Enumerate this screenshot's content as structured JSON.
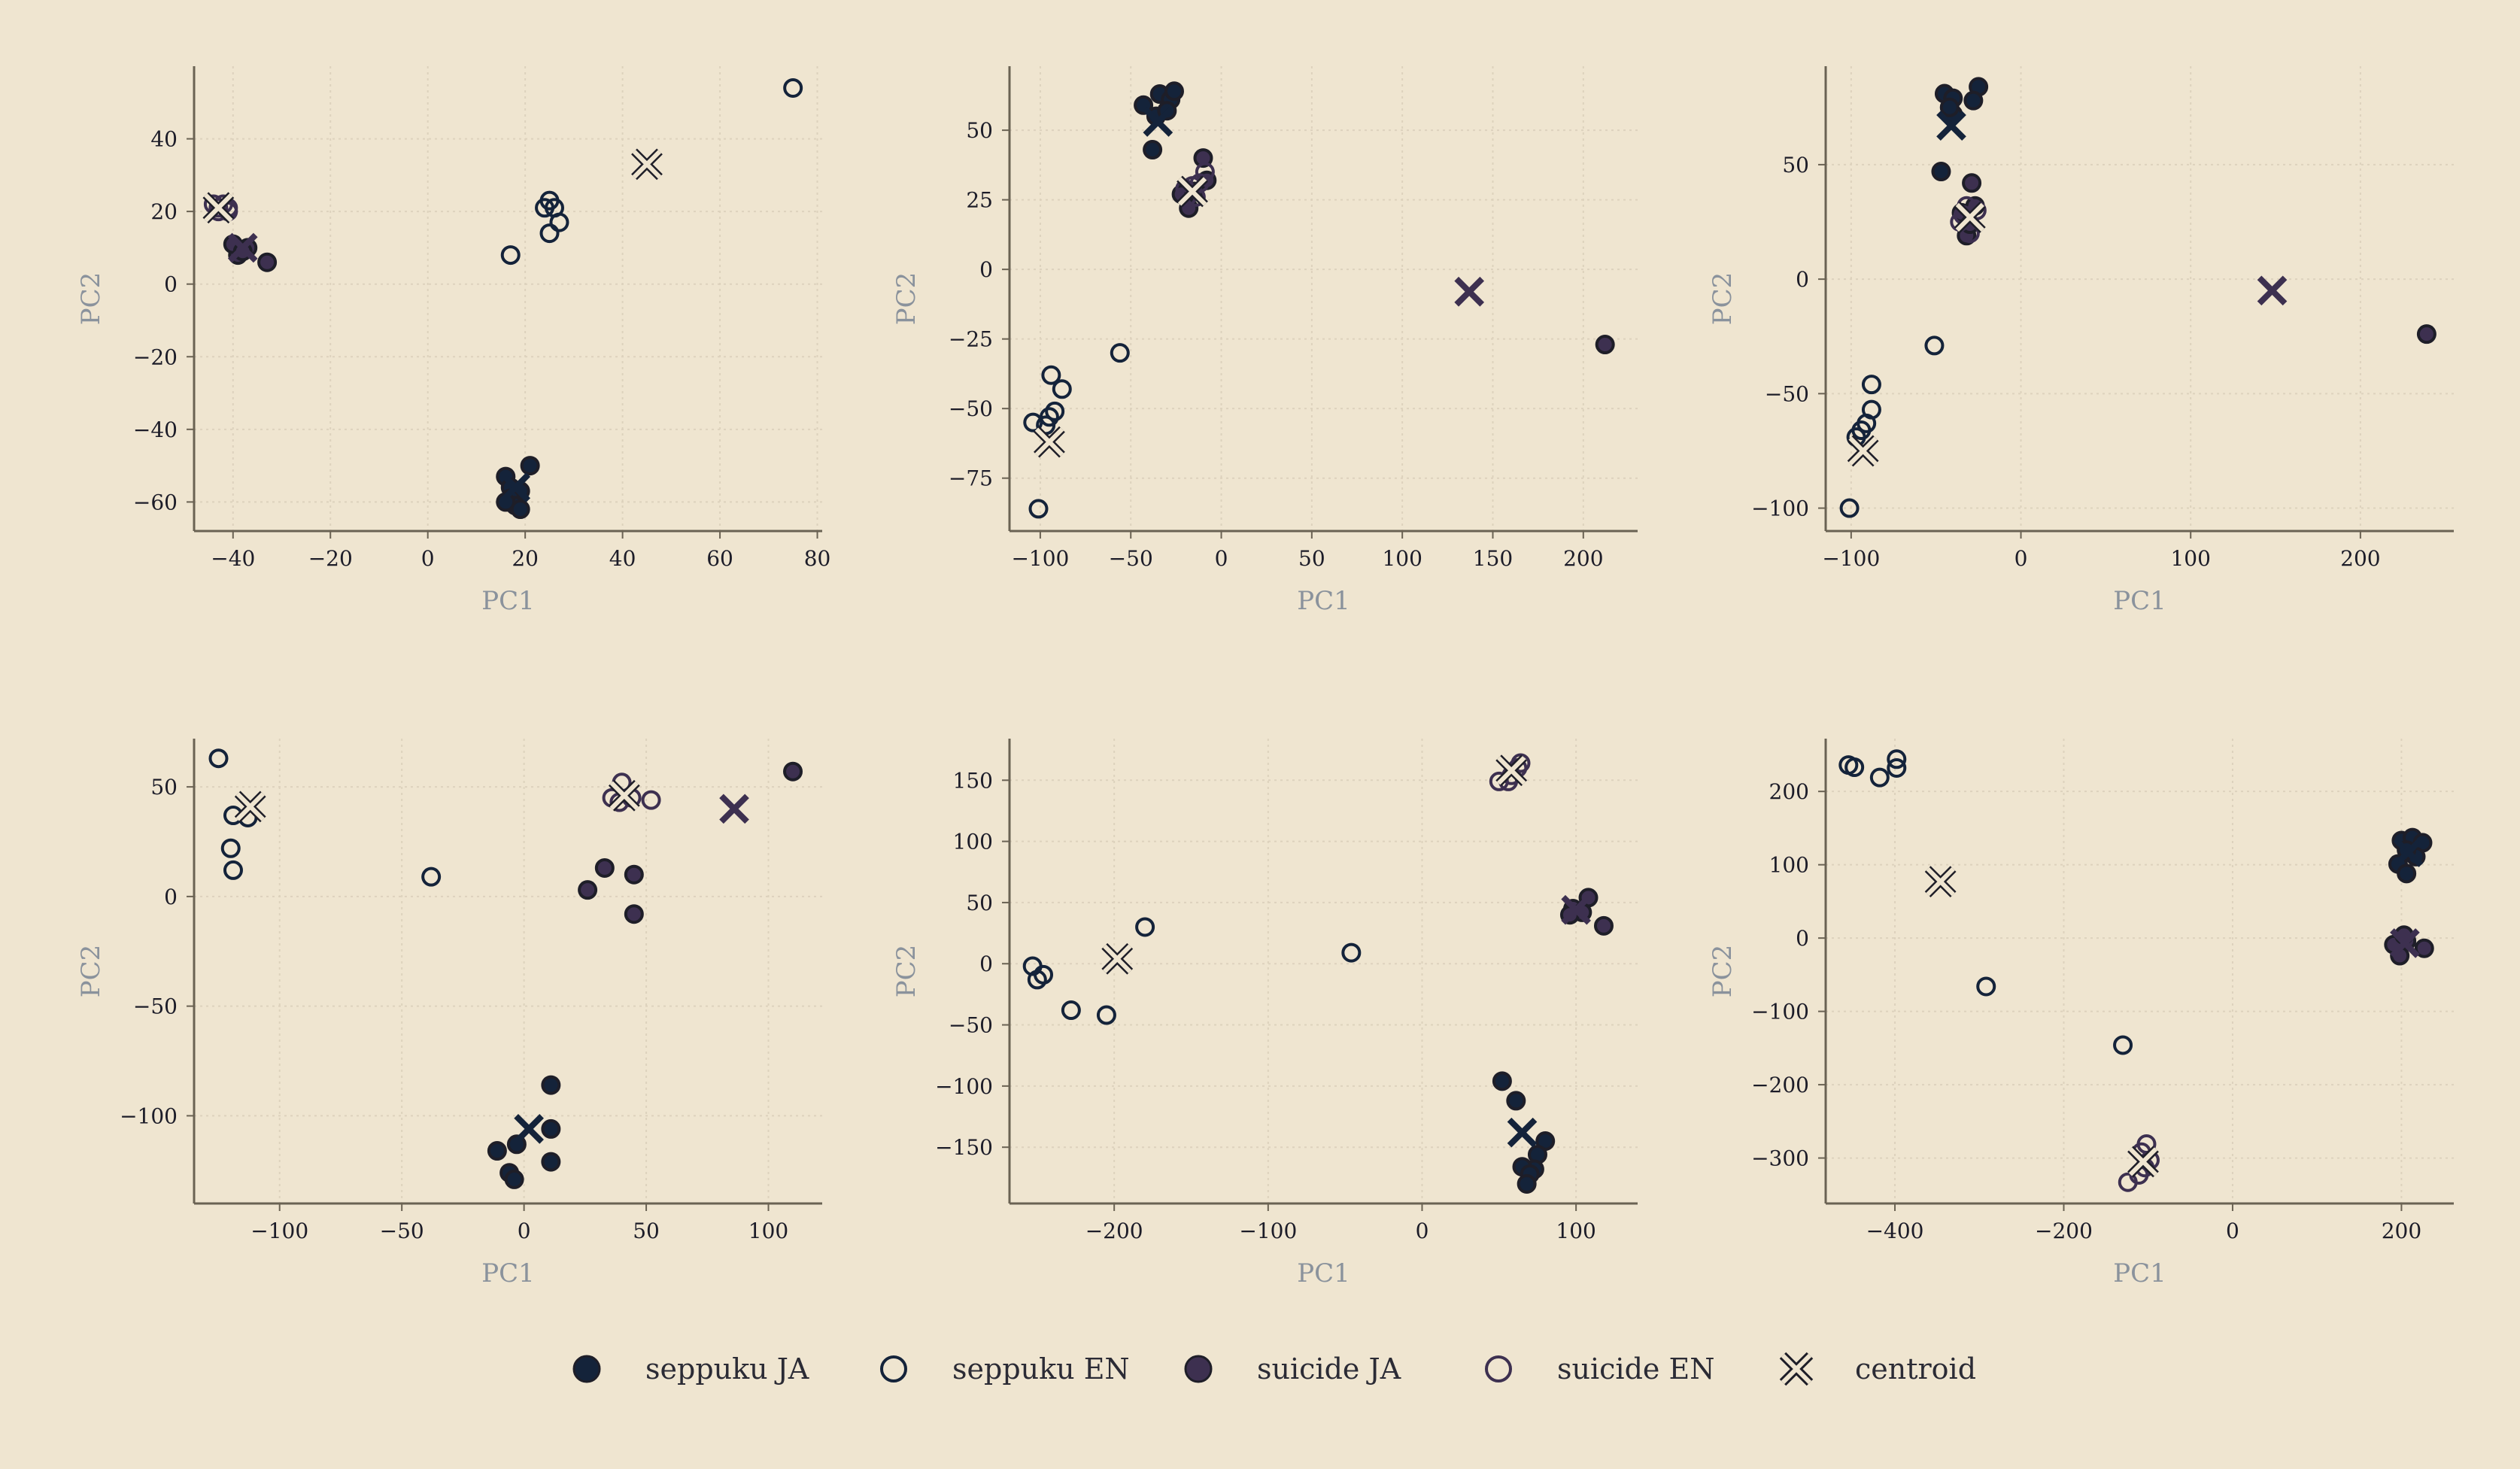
{
  "colors": {
    "background": "#efe5d0",
    "seppuku_ja": "#14233a",
    "suicide_ja": "#3d3050",
    "outline": "#1e1e28",
    "axis": "#6a6253",
    "grid": "#ddd2bd",
    "axis_title": "#8a929c"
  },
  "legend": [
    {
      "key": "seppuku_ja",
      "label": "seppuku JA",
      "marker": "filled-circle",
      "color": "#14233a"
    },
    {
      "key": "seppuku_en",
      "label": "seppuku EN",
      "marker": "hollow-circle",
      "color": "#14233a"
    },
    {
      "key": "suicide_ja",
      "label": "suicide JA",
      "marker": "filled-circle",
      "color": "#3d3050"
    },
    {
      "key": "suicide_en",
      "label": "suicide EN",
      "marker": "hollow-circle",
      "color": "#3d3050"
    },
    {
      "key": "centroid",
      "label": "centroid",
      "marker": "x",
      "color": "#14233a"
    }
  ],
  "chart_data": [
    {
      "type": "scatter",
      "xlabel": "PC1",
      "ylabel": "PC2",
      "xlim": [
        -48,
        81
      ],
      "ylim": [
        -68,
        60
      ],
      "xticks": [
        -40,
        -20,
        0,
        20,
        40,
        60,
        80
      ],
      "yticks": [
        -60,
        -40,
        -20,
        0,
        20,
        40
      ],
      "grid": true,
      "series": [
        {
          "key": "seppuku_ja",
          "points": [
            [
              21,
              -50
            ],
            [
              16,
              -53
            ],
            [
              17,
              -56
            ],
            [
              19,
              -57
            ],
            [
              17,
              -59
            ],
            [
              18,
              -61
            ],
            [
              16,
              -60
            ],
            [
              19,
              -62
            ]
          ]
        },
        {
          "key": "seppuku_en",
          "points": [
            [
              75,
              54
            ],
            [
              17,
              8
            ],
            [
              25,
              23
            ],
            [
              26,
              21
            ],
            [
              24,
              21
            ],
            [
              27,
              17
            ],
            [
              25,
              14
            ]
          ]
        },
        {
          "key": "suicide_ja",
          "points": [
            [
              -33,
              6
            ],
            [
              -37,
              10
            ],
            [
              -39,
              8
            ],
            [
              -40,
              11
            ],
            [
              -38,
              9
            ]
          ]
        },
        {
          "key": "suicide_en",
          "points": [
            [
              -44,
              22
            ],
            [
              -43,
              21
            ],
            [
              -42,
              22
            ],
            [
              -41,
              21
            ],
            [
              -43,
              20
            ],
            [
              -41,
              20
            ]
          ]
        },
        {
          "key": "centroid",
          "points": [
            [
              18,
              -56,
              "seppuku_ja"
            ],
            [
              45,
              33,
              "seppuku_en"
            ],
            [
              -38,
              10,
              "suicide_ja"
            ],
            [
              -43,
              21,
              "suicide_en"
            ]
          ]
        }
      ]
    },
    {
      "type": "scatter",
      "xlabel": "PC1",
      "ylabel": "PC2",
      "xlim": [
        -117,
        230
      ],
      "ylim": [
        -94,
        73
      ],
      "xticks": [
        -100,
        -50,
        0,
        50,
        100,
        150,
        200
      ],
      "yticks": [
        -75,
        -50,
        -25,
        0,
        25,
        50
      ],
      "grid": true,
      "series": [
        {
          "key": "seppuku_ja",
          "points": [
            [
              -43,
              59
            ],
            [
              -34,
              63
            ],
            [
              -28,
              61
            ],
            [
              -26,
              64
            ],
            [
              -36,
              55
            ],
            [
              -30,
              57
            ],
            [
              -38,
              43
            ]
          ]
        },
        {
          "key": "seppuku_en",
          "points": [
            [
              -101,
              -86
            ],
            [
              -56,
              -30
            ],
            [
              -94,
              -38
            ],
            [
              -88,
              -43
            ],
            [
              -92,
              -51
            ],
            [
              -95,
              -53
            ],
            [
              -104,
              -55
            ],
            [
              -97,
              -56
            ]
          ]
        },
        {
          "key": "suicide_ja",
          "points": [
            [
              -10,
              40
            ],
            [
              -22,
              27
            ],
            [
              -18,
              22
            ],
            [
              -15,
              28
            ],
            [
              -8,
              32
            ],
            [
              212,
              -27
            ]
          ]
        },
        {
          "key": "suicide_en",
          "points": [
            [
              -16,
              30
            ],
            [
              -19,
              26
            ],
            [
              -9,
              35
            ],
            [
              -14,
              26
            ],
            [
              -20,
              29
            ],
            [
              -12,
              31
            ]
          ]
        },
        {
          "key": "centroid",
          "points": [
            [
              -35,
              53,
              "seppuku_ja"
            ],
            [
              -95,
              -62,
              "seppuku_en"
            ],
            [
              137,
              -8,
              "suicide_ja"
            ],
            [
              -16,
              28,
              "suicide_en"
            ]
          ]
        }
      ]
    },
    {
      "type": "scatter",
      "xlabel": "PC1",
      "ylabel": "PC2",
      "xlim": [
        -115,
        255
      ],
      "ylim": [
        -110,
        93
      ],
      "xticks": [
        -100,
        0,
        100,
        200
      ],
      "yticks": [
        -100,
        -50,
        0,
        50
      ],
      "grid": true,
      "series": [
        {
          "key": "seppuku_ja",
          "points": [
            [
              -25,
              84
            ],
            [
              -45,
              81
            ],
            [
              -40,
              79
            ],
            [
              -40,
              72
            ],
            [
              -28,
              78
            ],
            [
              -47,
              47
            ],
            [
              -42,
              75
            ]
          ]
        },
        {
          "key": "seppuku_en",
          "points": [
            [
              -101,
              -100
            ],
            [
              -51,
              -29
            ],
            [
              -88,
              -46
            ],
            [
              -88,
              -57
            ],
            [
              -91,
              -63
            ],
            [
              -94,
              -66
            ],
            [
              -97,
              -69
            ]
          ]
        },
        {
          "key": "suicide_ja",
          "points": [
            [
              -29,
              42
            ],
            [
              -35,
              29
            ],
            [
              -32,
              19
            ],
            [
              -27,
              32
            ],
            [
              -30,
              24
            ],
            [
              239,
              -24
            ]
          ]
        },
        {
          "key": "suicide_en",
          "points": [
            [
              -34,
              28
            ],
            [
              -30,
              20
            ],
            [
              -26,
              30
            ],
            [
              -32,
              32
            ],
            [
              -36,
              25
            ]
          ]
        },
        {
          "key": "centroid",
          "points": [
            [
              -41,
              67,
              "seppuku_ja"
            ],
            [
              -93,
              -75,
              "seppuku_en"
            ],
            [
              148,
              -5,
              "suicide_ja"
            ],
            [
              -30,
              27,
              "suicide_en"
            ]
          ]
        }
      ]
    },
    {
      "type": "scatter",
      "xlabel": "PC1",
      "ylabel": "PC2",
      "xlim": [
        -135,
        122
      ],
      "ylim": [
        -140,
        72
      ],
      "xticks": [
        -100,
        -50,
        0,
        50,
        100
      ],
      "yticks": [
        -100,
        -50,
        0,
        50
      ],
      "grid": true,
      "series": [
        {
          "key": "seppuku_ja",
          "points": [
            [
              11,
              -86
            ],
            [
              -11,
              -116
            ],
            [
              -6,
              -126
            ],
            [
              -4,
              -129
            ],
            [
              -3,
              -113
            ],
            [
              11,
              -106
            ],
            [
              11,
              -121
            ]
          ]
        },
        {
          "key": "seppuku_en",
          "points": [
            [
              -125,
              63
            ],
            [
              -119,
              37
            ],
            [
              -113,
              36
            ],
            [
              -120,
              22
            ],
            [
              -119,
              12
            ],
            [
              -38,
              9
            ]
          ]
        },
        {
          "key": "suicide_ja",
          "points": [
            [
              110,
              57
            ],
            [
              33,
              13
            ],
            [
              26,
              3
            ],
            [
              45,
              10
            ],
            [
              45,
              -8
            ]
          ]
        },
        {
          "key": "suicide_en",
          "points": [
            [
              40,
              52
            ],
            [
              36,
              45
            ],
            [
              44,
              45
            ],
            [
              52,
              44
            ],
            [
              39,
              43
            ]
          ]
        },
        {
          "key": "centroid",
          "points": [
            [
              2,
              -106,
              "seppuku_ja"
            ],
            [
              -112,
              41,
              "seppuku_en"
            ],
            [
              86,
              40,
              "suicide_ja"
            ],
            [
              41,
              46,
              "suicide_en"
            ]
          ]
        }
      ]
    },
    {
      "type": "scatter",
      "xlabel": "PC1",
      "ylabel": "PC2",
      "xlim": [
        -268,
        140
      ],
      "ylim": [
        -196,
        184
      ],
      "xticks": [
        -200,
        -100,
        0,
        100
      ],
      "yticks": [
        -150,
        -100,
        -50,
        0,
        50,
        100,
        150
      ],
      "grid": true,
      "series": [
        {
          "key": "seppuku_ja",
          "points": [
            [
              52,
              -96
            ],
            [
              61,
              -112
            ],
            [
              80,
              -145
            ],
            [
              75,
              -156
            ],
            [
              73,
              -168
            ],
            [
              65,
              -166
            ],
            [
              70,
              -172
            ],
            [
              68,
              -180
            ]
          ]
        },
        {
          "key": "seppuku_en",
          "points": [
            [
              -180,
              30
            ],
            [
              -253,
              -2
            ],
            [
              -246,
              -9
            ],
            [
              -250,
              -13
            ],
            [
              -228,
              -38
            ],
            [
              -205,
              -42
            ],
            [
              -46,
              9
            ]
          ]
        },
        {
          "key": "suicide_ja",
          "points": [
            [
              118,
              31
            ],
            [
              108,
              54
            ],
            [
              98,
              45
            ],
            [
              104,
              42
            ],
            [
              96,
              40
            ]
          ]
        },
        {
          "key": "suicide_en",
          "points": [
            [
              64,
              164
            ],
            [
              62,
              160
            ],
            [
              58,
              154
            ],
            [
              50,
              149
            ],
            [
              56,
              149
            ]
          ]
        },
        {
          "key": "centroid",
          "points": [
            [
              65,
              -138,
              "seppuku_ja"
            ],
            [
              -198,
              4,
              "seppuku_en"
            ],
            [
              100,
              44,
              "suicide_ja"
            ],
            [
              58,
              158,
              "suicide_en"
            ]
          ]
        }
      ]
    },
    {
      "type": "scatter",
      "xlabel": "PC1",
      "ylabel": "PC2",
      "xlim": [
        -482,
        262
      ],
      "ylim": [
        -362,
        272
      ],
      "xticks": [
        -400,
        -200,
        0,
        200
      ],
      "yticks": [
        -300,
        -200,
        -100,
        0,
        100,
        200
      ],
      "grid": true,
      "series": [
        {
          "key": "seppuku_ja",
          "points": [
            [
              200,
              133
            ],
            [
              213,
              137
            ],
            [
              225,
              130
            ],
            [
              196,
              101
            ],
            [
              206,
              88
            ],
            [
              217,
              111
            ],
            [
              206,
              120
            ]
          ]
        },
        {
          "key": "seppuku_en",
          "points": [
            [
              -455,
              236
            ],
            [
              -448,
              233
            ],
            [
              -398,
              244
            ],
            [
              -398,
              232
            ],
            [
              -418,
              219
            ],
            [
              -292,
              -66
            ],
            [
              -130,
              -146
            ]
          ]
        },
        {
          "key": "suicide_ja",
          "points": [
            [
              227,
              -14
            ],
            [
              206,
              -4
            ],
            [
              198,
              -24
            ],
            [
              191,
              -9
            ],
            [
              203,
              4
            ]
          ]
        },
        {
          "key": "suicide_en",
          "points": [
            [
              -102,
              -281
            ],
            [
              -108,
              -292
            ],
            [
              -98,
              -303
            ],
            [
              -104,
              -313
            ],
            [
              -111,
              -323
            ],
            [
              -124,
              -333
            ]
          ]
        },
        {
          "key": "centroid",
          "points": [
            [
              208,
              117,
              "seppuku_ja"
            ],
            [
              -346,
              77,
              "seppuku_en"
            ],
            [
              204,
              -7,
              "suicide_ja"
            ],
            [
              -106,
              -305,
              "suicide_en"
            ]
          ]
        }
      ]
    }
  ]
}
